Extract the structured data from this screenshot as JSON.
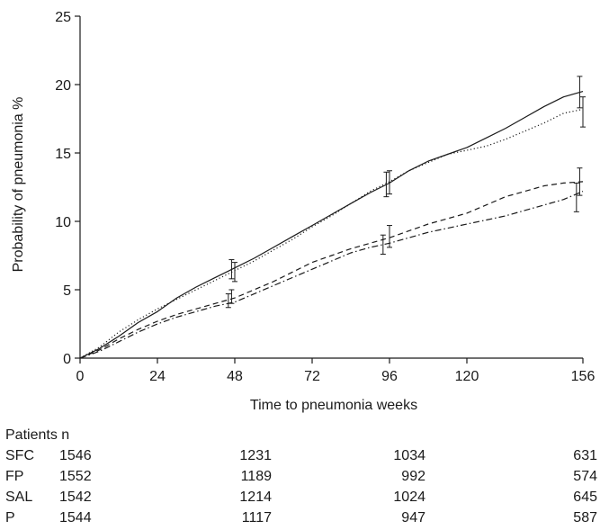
{
  "chart_data": {
    "type": "line",
    "title": "",
    "xlabel": "Time to pneumonia weeks",
    "ylabel": "Probability of pneumonia %",
    "xlim": [
      0,
      156
    ],
    "ylim": [
      0,
      25
    ],
    "xticks": [
      0,
      24,
      48,
      72,
      96,
      120,
      156
    ],
    "yticks": [
      0,
      5,
      10,
      15,
      20,
      25
    ],
    "grid": false,
    "series": [
      {
        "style": "solid",
        "points": [
          [
            0,
            0
          ],
          [
            6,
            0.7
          ],
          [
            12,
            1.6
          ],
          [
            18,
            2.6
          ],
          [
            24,
            3.4
          ],
          [
            30,
            4.4
          ],
          [
            36,
            5.2
          ],
          [
            42,
            5.9
          ],
          [
            48,
            6.6
          ],
          [
            54,
            7.3
          ],
          [
            60,
            8.1
          ],
          [
            66,
            8.9
          ],
          [
            72,
            9.7
          ],
          [
            78,
            10.5
          ],
          [
            84,
            11.3
          ],
          [
            90,
            12.1
          ],
          [
            96,
            12.8
          ],
          [
            102,
            13.7
          ],
          [
            108,
            14.4
          ],
          [
            114,
            14.9
          ],
          [
            120,
            15.4
          ],
          [
            126,
            16.1
          ],
          [
            132,
            16.8
          ],
          [
            138,
            17.6
          ],
          [
            144,
            18.4
          ],
          [
            150,
            19.1
          ],
          [
            156,
            19.5
          ]
        ],
        "error_bars": [
          [
            47,
            6.5,
            5.8,
            7.2
          ],
          [
            95,
            12.7,
            11.8,
            13.6
          ],
          [
            155,
            19.4,
            18.3,
            20.6
          ]
        ]
      },
      {
        "style": "dotted",
        "points": [
          [
            0,
            0
          ],
          [
            6,
            0.8
          ],
          [
            12,
            1.9
          ],
          [
            18,
            2.8
          ],
          [
            24,
            3.6
          ],
          [
            30,
            4.3
          ],
          [
            36,
            5.0
          ],
          [
            42,
            5.7
          ],
          [
            48,
            6.4
          ],
          [
            54,
            7.1
          ],
          [
            60,
            7.9
          ],
          [
            66,
            8.7
          ],
          [
            72,
            9.6
          ],
          [
            78,
            10.4
          ],
          [
            84,
            11.3
          ],
          [
            90,
            12.2
          ],
          [
            96,
            12.9
          ],
          [
            102,
            13.7
          ],
          [
            108,
            14.3
          ],
          [
            114,
            14.9
          ],
          [
            120,
            15.2
          ],
          [
            126,
            15.5
          ],
          [
            132,
            16.0
          ],
          [
            138,
            16.6
          ],
          [
            144,
            17.2
          ],
          [
            150,
            17.9
          ],
          [
            156,
            18.2
          ]
        ],
        "error_bars": [
          [
            48,
            6.3,
            5.6,
            7.0
          ],
          [
            96,
            12.9,
            12.0,
            13.7
          ],
          [
            156,
            18.0,
            16.9,
            19.1
          ]
        ]
      },
      {
        "style": "dashed",
        "points": [
          [
            0,
            0
          ],
          [
            6,
            0.6
          ],
          [
            12,
            1.4
          ],
          [
            18,
            2.1
          ],
          [
            24,
            2.7
          ],
          [
            30,
            3.2
          ],
          [
            36,
            3.6
          ],
          [
            42,
            4.0
          ],
          [
            48,
            4.4
          ],
          [
            54,
            5.0
          ],
          [
            60,
            5.6
          ],
          [
            66,
            6.3
          ],
          [
            72,
            7.0
          ],
          [
            78,
            7.5
          ],
          [
            84,
            8.0
          ],
          [
            90,
            8.4
          ],
          [
            96,
            8.8
          ],
          [
            102,
            9.3
          ],
          [
            108,
            9.8
          ],
          [
            114,
            10.2
          ],
          [
            120,
            10.6
          ],
          [
            126,
            11.2
          ],
          [
            132,
            11.8
          ],
          [
            138,
            12.2
          ],
          [
            144,
            12.6
          ],
          [
            150,
            12.8
          ],
          [
            156,
            12.9
          ]
        ],
        "error_bars": [
          [
            47,
            4.5,
            4.0,
            5.0
          ],
          [
            96,
            8.9,
            8.1,
            9.7
          ],
          [
            155,
            12.9,
            11.9,
            13.9
          ]
        ]
      },
      {
        "style": "dashdot",
        "points": [
          [
            0,
            0
          ],
          [
            6,
            0.5
          ],
          [
            12,
            1.2
          ],
          [
            18,
            1.9
          ],
          [
            24,
            2.5
          ],
          [
            30,
            3.0
          ],
          [
            36,
            3.4
          ],
          [
            42,
            3.8
          ],
          [
            48,
            4.1
          ],
          [
            54,
            4.7
          ],
          [
            60,
            5.3
          ],
          [
            66,
            5.9
          ],
          [
            72,
            6.5
          ],
          [
            78,
            7.1
          ],
          [
            84,
            7.7
          ],
          [
            90,
            8.1
          ],
          [
            96,
            8.4
          ],
          [
            102,
            8.8
          ],
          [
            108,
            9.2
          ],
          [
            114,
            9.5
          ],
          [
            120,
            9.8
          ],
          [
            126,
            10.1
          ],
          [
            132,
            10.4
          ],
          [
            138,
            10.8
          ],
          [
            144,
            11.2
          ],
          [
            150,
            11.6
          ],
          [
            156,
            12.2
          ]
        ],
        "error_bars": [
          [
            46,
            4.2,
            3.7,
            4.7
          ],
          [
            94,
            8.3,
            7.6,
            9.0
          ],
          [
            154,
            11.8,
            10.7,
            12.8
          ]
        ]
      }
    ]
  },
  "risk_table": {
    "title": "Patients n",
    "rows": [
      {
        "label": "SFC",
        "values": [
          "1546",
          "1231",
          "1034",
          "631"
        ]
      },
      {
        "label": "FP",
        "values": [
          "1552",
          "1189",
          "992",
          "574"
        ]
      },
      {
        "label": "SAL",
        "values": [
          "1542",
          "1214",
          "1024",
          "645"
        ]
      },
      {
        "label": "P",
        "values": [
          "1544",
          "1117",
          "947",
          "587"
        ]
      }
    ]
  }
}
